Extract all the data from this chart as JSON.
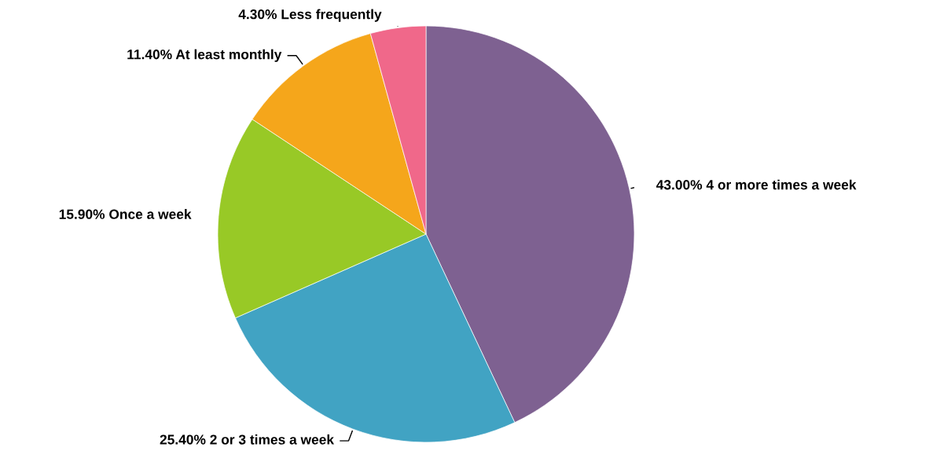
{
  "chart_data": {
    "type": "pie",
    "categories": [
      "4 or more times a week",
      "2 or 3 times a week",
      "Once a week",
      "At least monthly",
      "Less frequently"
    ],
    "values": [
      43.0,
      25.4,
      15.9,
      11.4,
      4.3
    ],
    "value_labels": [
      "43.00%",
      "25.40%",
      "15.90%",
      "11.40%",
      "4.30%"
    ],
    "colors": [
      "#7e6191",
      "#41a3c3",
      "#98c926",
      "#f5a61b",
      "#f0688a"
    ],
    "legend": false
  }
}
